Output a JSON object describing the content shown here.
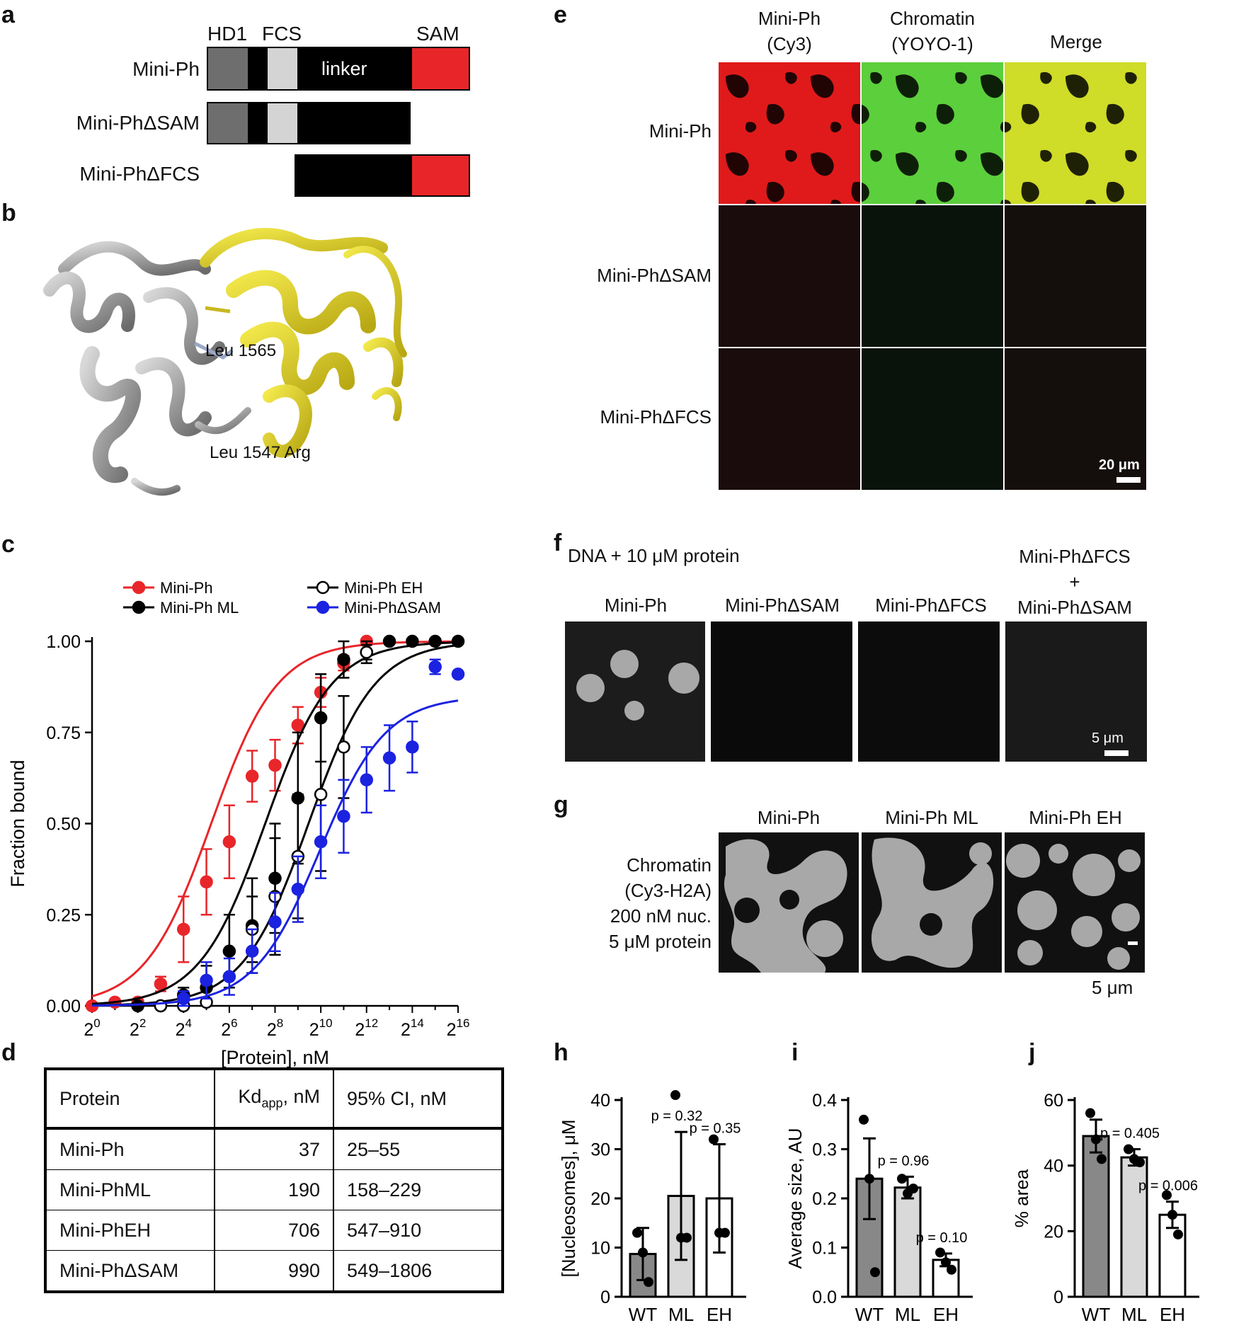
{
  "panels": {
    "a": "a",
    "b": "b",
    "c": "c",
    "d": "d",
    "e": "e",
    "f": "f",
    "g": "g",
    "h": "h",
    "i": "i",
    "j": "j"
  },
  "panel_a": {
    "domains": [
      "HD1",
      "FCS",
      "SAM"
    ],
    "linker_label": "linker",
    "constructs": [
      "Mini-Ph",
      "Mini-PhΔSAM",
      "Mini-PhΔFCS"
    ],
    "colors": {
      "hd1": "#6e6e6e",
      "fcs": "#d4d4d4",
      "linker": "#000000",
      "sam": "#e8262a"
    }
  },
  "panel_b": {
    "labels": [
      "Leu 1565",
      "Leu 1547 Arg"
    ],
    "colors": {
      "left": "#b8b8b8",
      "right": "#e6dc2a"
    }
  },
  "panel_c": {
    "ylabel": "Fraction bound",
    "xlabel": "[Protein], nM",
    "yticks": [
      "0.00",
      "0.25",
      "0.50",
      "0.75",
      "1.00"
    ],
    "xticks": [
      0,
      2,
      4,
      6,
      8,
      10,
      12,
      14,
      16
    ],
    "xtick_base": "2"
  },
  "chart_data": [
    {
      "type": "scatter",
      "ylabel": "Fraction bound",
      "xlabel": "[Protein], nM",
      "xscale": "log2",
      "xlim": [
        1,
        65536
      ],
      "ylim": [
        0,
        1
      ],
      "legend_position": "top",
      "series": [
        {
          "name": "Mini-Ph",
          "color": "#e8262a",
          "marker": "filled",
          "kd": 37,
          "bottom": 0,
          "top": 1.0,
          "x": [
            1,
            2,
            4,
            8,
            16,
            32,
            64,
            128,
            256,
            512,
            1024,
            2048,
            4096
          ],
          "y": [
            0.0,
            0.01,
            0.01,
            0.06,
            0.21,
            0.34,
            0.45,
            0.63,
            0.66,
            0.77,
            0.86,
            0.94,
            1.0
          ],
          "err": [
            0,
            0,
            0,
            0.02,
            0.09,
            0.09,
            0.1,
            0.07,
            0.07,
            0.05,
            0.04,
            0.02,
            0
          ]
        },
        {
          "name": "Mini-Ph ML",
          "color": "#000000",
          "marker": "filled",
          "kd": 190,
          "bottom": 0,
          "top": 1.0,
          "x": [
            4,
            8,
            16,
            32,
            64,
            128,
            256,
            512,
            1024,
            2048,
            4096,
            8192,
            16384,
            32768,
            65536
          ],
          "y": [
            0.0,
            0.0,
            0.03,
            0.05,
            0.15,
            0.22,
            0.35,
            0.57,
            0.79,
            0.95,
            0.97,
            1.0,
            1.0,
            1.0,
            1.0
          ],
          "err": [
            0,
            0,
            0.02,
            0.06,
            0.1,
            0.13,
            0.15,
            0.18,
            0.12,
            0.05,
            0.02,
            0,
            0,
            0,
            0
          ]
        },
        {
          "name": "Mini-Ph EH",
          "color": "#000000",
          "marker": "open",
          "kd": 706,
          "bottom": 0,
          "top": 1.0,
          "x": [
            8,
            16,
            32,
            128,
            256,
            512,
            1024,
            2048,
            4096
          ],
          "y": [
            0.0,
            0.0,
            0.01,
            0.21,
            0.3,
            0.41,
            0.58,
            0.71,
            0.97
          ],
          "err": [
            0,
            0,
            0,
            0.09,
            0.16,
            0.17,
            0.21,
            0.14,
            0.03
          ]
        },
        {
          "name": "Mini-PhΔSAM",
          "color": "#1b22e0",
          "marker": "filled",
          "kd": 990,
          "bottom": 0,
          "top": 0.85,
          "x": [
            16,
            32,
            64,
            128,
            256,
            512,
            1024,
            2048,
            4096,
            8192,
            16384,
            32768,
            65536
          ],
          "y": [
            0.02,
            0.07,
            0.08,
            0.15,
            0.23,
            0.32,
            0.45,
            0.52,
            0.62,
            0.68,
            0.71,
            0.93,
            0.91
          ],
          "err": [
            0.02,
            0.05,
            0.05,
            0.06,
            0.08,
            0.09,
            0.1,
            0.1,
            0.09,
            0.09,
            0.07,
            0.02,
            0
          ]
        }
      ]
    },
    {
      "type": "bar",
      "panel": "h",
      "ylabel": "[Nucleosomes], μM",
      "categories": [
        "WT",
        "ML",
        "EH"
      ],
      "values": [
        8.7,
        20.5,
        20.0
      ],
      "err": [
        5.3,
        13.0,
        11.0
      ],
      "points": [
        [
          13,
          9,
          3
        ],
        [
          41,
          12,
          12
        ],
        [
          32,
          13,
          13
        ]
      ],
      "yticks": [
        0,
        10,
        20,
        30,
        40
      ],
      "ylim": [
        0,
        40
      ],
      "annotations": [
        "",
        "p = 0.32",
        "p = 0.35"
      ],
      "bar_colors": [
        "#888888",
        "#d9d9d9",
        "#ffffff"
      ]
    },
    {
      "type": "bar",
      "panel": "i",
      "ylabel": "Average size, AU",
      "categories": [
        "WT",
        "ML",
        "EH"
      ],
      "values": [
        0.24,
        0.222,
        0.075
      ],
      "err": [
        0.082,
        0.022,
        0.013
      ],
      "points": [
        [
          0.36,
          0.24,
          0.05
        ],
        [
          0.24,
          0.21,
          0.22
        ],
        [
          0.09,
          0.07,
          0.055
        ]
      ],
      "yticks": [
        "0.0",
        "0.1",
        "0.2",
        "0.3",
        "0.4"
      ],
      "ylim": [
        0,
        0.4
      ],
      "annotations": [
        "",
        "p = 0.96",
        "p = 0.10"
      ],
      "bar_colors": [
        "#888888",
        "#d9d9d9",
        "#ffffff"
      ]
    },
    {
      "type": "bar",
      "panel": "j",
      "ylabel": "% area",
      "categories": [
        "WT",
        "ML",
        "EH"
      ],
      "values": [
        49,
        42.5,
        25
      ],
      "err": [
        5,
        2.5,
        4
      ],
      "points": [
        [
          56,
          48,
          42
        ],
        [
          45,
          42,
          41
        ],
        [
          31,
          25,
          19
        ]
      ],
      "yticks": [
        0,
        20,
        40,
        60
      ],
      "ylim": [
        0,
        60
      ],
      "annotations": [
        "",
        "p = 0.405",
        "p = 0.006"
      ],
      "bar_colors": [
        "#888888",
        "#d9d9d9",
        "#ffffff"
      ]
    }
  ],
  "panel_d": {
    "headers": [
      "Protein",
      "Kd",
      "app",
      ", nM",
      "95% CI, nM"
    ],
    "rows": [
      [
        "Mini-Ph",
        "37",
        "25–55"
      ],
      [
        "Mini-PhML",
        "190",
        "158–229"
      ],
      [
        "Mini-PhEH",
        "706",
        "547–910"
      ],
      [
        "Mini-PhΔSAM",
        "990",
        "549–1806"
      ]
    ]
  },
  "panel_e": {
    "col_headers": [
      [
        "Mini-Ph",
        "(Cy3)"
      ],
      [
        "Chromatin",
        "(YOYO-1)"
      ],
      [
        "Merge",
        ""
      ]
    ],
    "row_labels": [
      "Mini-Ph",
      "Mini-PhΔSAM",
      "Mini-PhΔFCS"
    ],
    "scale_bar": "20 μm"
  },
  "panel_f": {
    "subtitle": "DNA + 10 μM protein",
    "col_headers": [
      "Mini-Ph",
      "Mini-PhΔSAM",
      "Mini-PhΔFCS"
    ],
    "combo": [
      "Mini-PhΔFCS",
      "+",
      "Mini-PhΔSAM"
    ],
    "scale_bar": "5 μm"
  },
  "panel_g": {
    "col_headers": [
      "Mini-Ph",
      "Mini-Ph ML",
      "Mini-Ph EH"
    ],
    "row_label": [
      "Chromatin",
      "(Cy3-H2A)",
      "200 nM nuc.",
      "5 μM protein"
    ],
    "scale_bar": "5 μm"
  }
}
